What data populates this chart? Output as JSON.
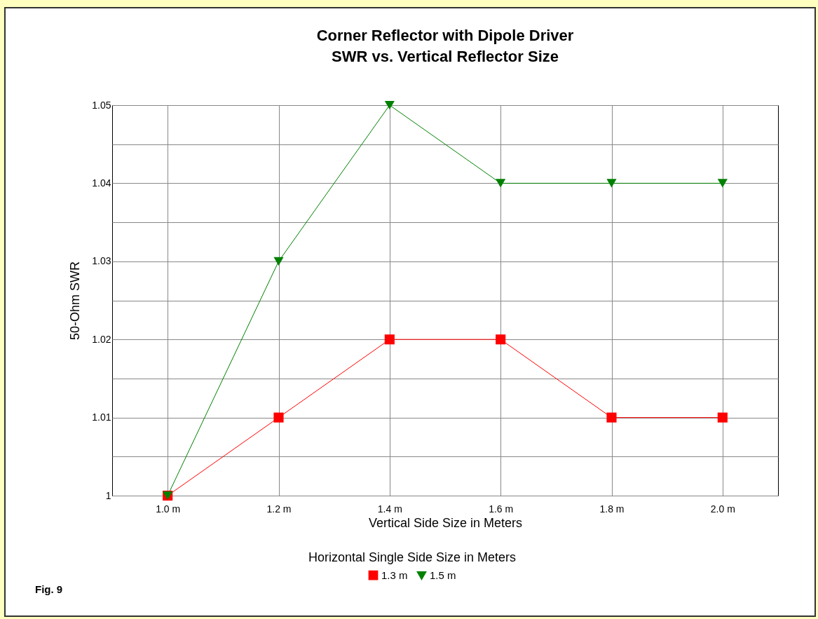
{
  "chart_data": {
    "type": "line",
    "title": "Corner Reflector with Dipole Driver",
    "subtitle": "SWR vs. Vertical Reflector Size",
    "xlabel": "Vertical Side Size in Meters",
    "ylabel": "50-Ohm SWR",
    "legend_title": "Horizontal Single Side Size in Meters",
    "categories": [
      "1.0 m",
      "1.2 m",
      "1.4 m",
      "1.6 m",
      "1.8 m",
      "2.0 m"
    ],
    "series": [
      {
        "name": "1.3 m",
        "color": "#ff0000",
        "marker": "square",
        "values": [
          1,
          1.01,
          1.02,
          1.02,
          1.01,
          1.01
        ]
      },
      {
        "name": "1.5 m",
        "color": "#008000",
        "marker": "triangle",
        "values": [
          1,
          1.03,
          1.05,
          1.04,
          1.04,
          1.04
        ]
      }
    ],
    "ylim": [
      1,
      1.05
    ],
    "yticks": [
      1,
      {
        "value": 1.005,
        "label": null
      },
      1.01,
      {
        "value": 1.015,
        "label": null
      },
      1.02,
      {
        "value": 1.025,
        "label": null
      },
      1.03,
      {
        "value": 1.035,
        "label": null
      },
      1.04,
      {
        "value": 1.045,
        "label": null
      },
      1.05
    ],
    "grid": true,
    "legend": "bottom",
    "annotations": [
      "Fig. 9"
    ]
  }
}
